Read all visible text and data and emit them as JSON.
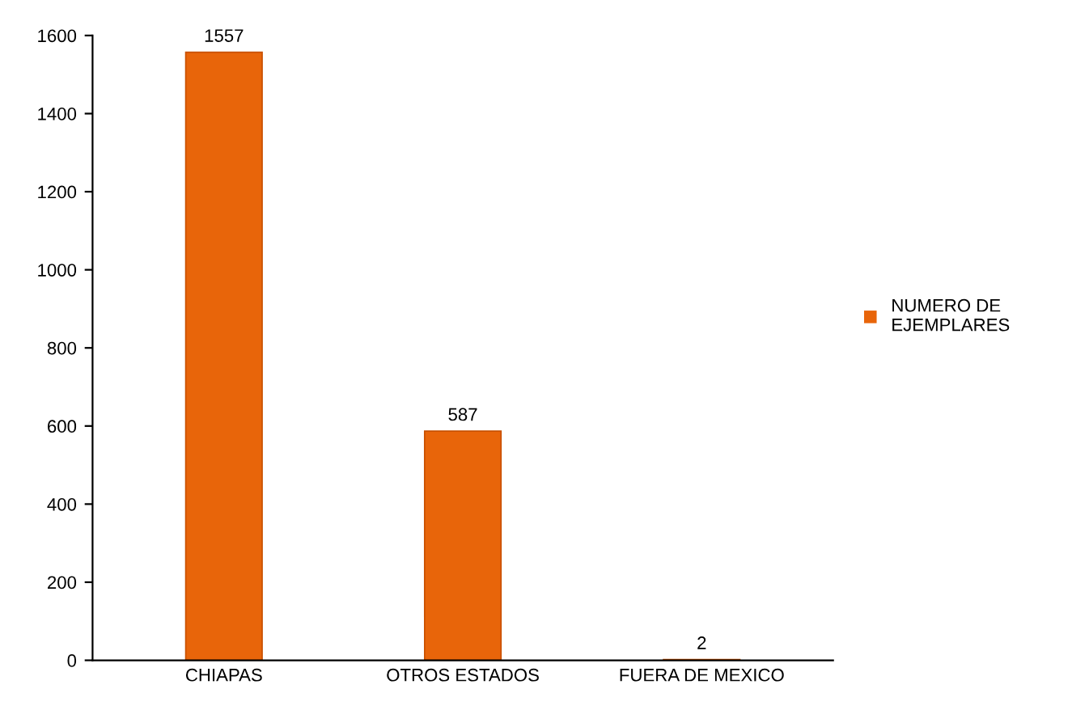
{
  "chart_data": {
    "type": "bar",
    "categories": [
      "CHIAPAS",
      "OTROS ESTADOS",
      "FUERA DE MEXICO"
    ],
    "series": [
      {
        "name": "NUMERO DE\nEJEMPLARES",
        "color": "#e8650a",
        "values": [
          1557,
          587,
          2
        ]
      }
    ],
    "ylim": [
      0,
      1600
    ],
    "yticks": [
      0,
      200,
      400,
      600,
      800,
      1000,
      1200,
      1400,
      1600
    ],
    "data_labels": true,
    "legend": "right",
    "grid": false
  }
}
